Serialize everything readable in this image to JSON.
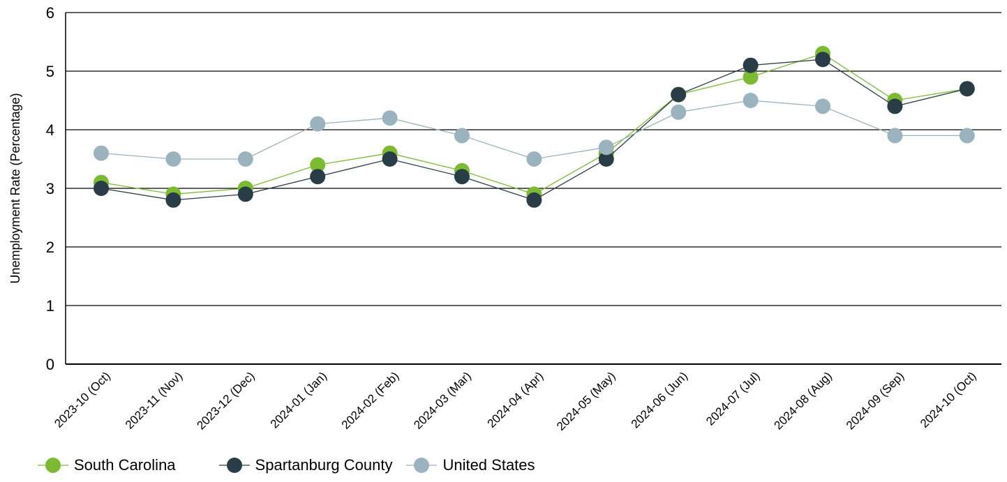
{
  "chart_data": {
    "type": "line",
    "title": "",
    "xlabel": "",
    "ylabel": "Unemployment Rate (Percentage)",
    "ylim": [
      0,
      6
    ],
    "yticks": [
      "0",
      "1",
      "2",
      "3",
      "4",
      "5",
      "6"
    ],
    "grid": true,
    "legend_position": "bottom-left",
    "categories": [
      "2023-10 (Oct)",
      "2023-11 (Nov)",
      "2023-12 (Dec)",
      "2024-01 (Jan)",
      "2024-02 (Feb)",
      "2024-03 (Mar)",
      "2024-04 (Apr)",
      "2024-05 (May)",
      "2024-06 (Jun)",
      "2024-07 (Jul)",
      "2024-08 (Aug)",
      "2024-09 (Sep)",
      "2024-10 (Oct)"
    ],
    "series": [
      {
        "name": "South Carolina",
        "color": "#7cbb31",
        "values": [
          3.1,
          2.9,
          3.0,
          3.4,
          3.6,
          3.3,
          2.9,
          3.6,
          4.6,
          4.9,
          5.3,
          4.5,
          4.7
        ]
      },
      {
        "name": "Spartanburg County",
        "color": "#293d46",
        "values": [
          3.0,
          2.8,
          2.9,
          3.2,
          3.5,
          3.2,
          2.8,
          3.5,
          4.6,
          5.1,
          5.2,
          4.4,
          4.7
        ]
      },
      {
        "name": "United States",
        "color": "#9bb3bf",
        "values": [
          3.6,
          3.5,
          3.5,
          4.1,
          4.2,
          3.9,
          3.5,
          3.7,
          4.3,
          4.5,
          4.4,
          3.9,
          3.9
        ]
      }
    ]
  }
}
